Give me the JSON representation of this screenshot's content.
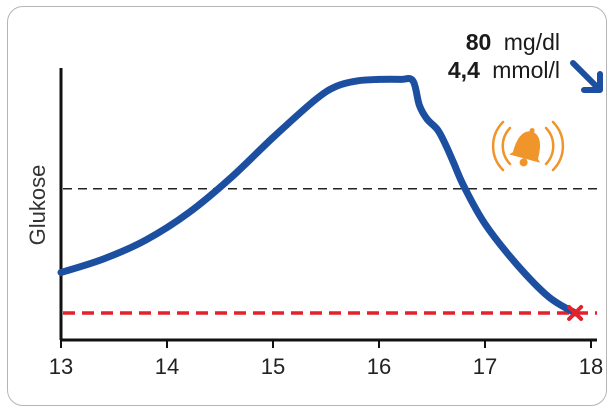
{
  "reading": {
    "mgdl_value": "80",
    "mgdl_unit": "mg/dl",
    "mmol_value": "4,4",
    "mmol_unit": "mmol/l",
    "trend_icon": "arrow-down-right-icon"
  },
  "alert_icon": "ringing-bell-icon",
  "low_marker_icon": "x-mark-icon",
  "colors": {
    "curve": "#1c4fa0",
    "low_line": "#e4202a",
    "bell": "#f0952a",
    "axis": "#111111",
    "threshold": "#222222"
  },
  "chart_data": {
    "type": "line",
    "title": "",
    "xlabel": "",
    "ylabel": "Glukose",
    "x_ticks": [
      13,
      14,
      15,
      16,
      17,
      18
    ],
    "xlim": [
      13,
      18.1
    ],
    "ylim": [
      0,
      100
    ],
    "series": [
      {
        "x": [
          13.0,
          13.4,
          13.8,
          14.2,
          14.6,
          15.0,
          15.4,
          15.6,
          15.8,
          16.0,
          16.2,
          16.32,
          16.38,
          16.45,
          16.55,
          16.62,
          16.7,
          16.8,
          17.0,
          17.3,
          17.6,
          17.85
        ],
        "y": [
          25,
          30,
          37,
          47,
          60,
          75,
          89,
          94,
          96,
          96.5,
          96.5,
          96,
          87,
          82,
          78,
          73,
          66,
          57,
          43,
          28,
          16,
          10
        ]
      }
    ],
    "reference_lines": [
      {
        "y": 56,
        "style": "dashed",
        "color": "#222222"
      },
      {
        "y": 10,
        "style": "dashed",
        "color": "#e4202a"
      }
    ],
    "grid": false,
    "legend": "none"
  }
}
